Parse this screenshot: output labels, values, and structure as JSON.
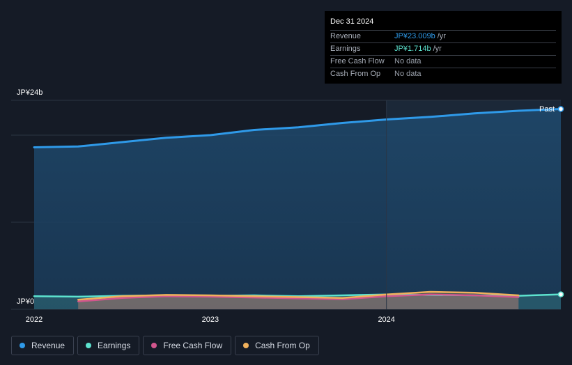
{
  "tooltip": {
    "date": "Dec 31 2024",
    "rows": [
      {
        "label": "Revenue",
        "value": "JP¥23.009b",
        "unit": "/yr",
        "color": "#2f9ae9"
      },
      {
        "label": "Earnings",
        "value": "JP¥1.714b",
        "unit": "/yr",
        "color": "#5de3cf"
      },
      {
        "label": "Free Cash Flow",
        "value": "No data",
        "unit": "",
        "color": "#7d838d"
      },
      {
        "label": "Cash From Op",
        "value": "No data",
        "unit": "",
        "color": "#7d838d"
      }
    ]
  },
  "past_label": "Past",
  "legend": [
    {
      "label": "Revenue",
      "color": "#2f9ae9"
    },
    {
      "label": "Earnings",
      "color": "#5de3cf"
    },
    {
      "label": "Free Cash Flow",
      "color": "#d2568d"
    },
    {
      "label": "Cash From Op",
      "color": "#f0b15c"
    }
  ],
  "chart_data": {
    "type": "line",
    "ylabel_top": "JP¥24b",
    "ylabel_bottom": "JP¥0",
    "ylim": [
      0,
      24
    ],
    "xlim": [
      2022.0,
      2024.99
    ],
    "x_ticks": [
      "2022",
      "2023",
      "2024"
    ],
    "x_tick_values": [
      2022,
      2023,
      2024
    ],
    "units": "JP¥ billions",
    "series": [
      {
        "name": "Revenue",
        "color": "#2f9ae9",
        "x": [
          2022.0,
          2022.25,
          2022.5,
          2022.75,
          2023.0,
          2023.25,
          2023.5,
          2023.75,
          2024.0,
          2024.25,
          2024.5,
          2024.75,
          2024.99
        ],
        "y": [
          18.6,
          18.7,
          19.2,
          19.7,
          20.0,
          20.6,
          20.9,
          21.4,
          21.8,
          22.1,
          22.5,
          22.8,
          23.0
        ]
      },
      {
        "name": "Earnings",
        "color": "#5de3cf",
        "x": [
          2022.0,
          2022.25,
          2022.5,
          2022.75,
          2023.0,
          2023.25,
          2023.5,
          2023.75,
          2024.0,
          2024.25,
          2024.5,
          2024.75,
          2024.99
        ],
        "y": [
          1.5,
          1.45,
          1.55,
          1.6,
          1.55,
          1.6,
          1.5,
          1.6,
          1.7,
          1.65,
          1.6,
          1.55,
          1.71
        ]
      },
      {
        "name": "Free Cash Flow",
        "color": "#d2568d",
        "x": [
          2022.25,
          2022.5,
          2022.75,
          2023.0,
          2023.25,
          2023.5,
          2023.75,
          2024.0,
          2024.25,
          2024.5,
          2024.75
        ],
        "y": [
          0.9,
          1.3,
          1.5,
          1.45,
          1.35,
          1.25,
          1.15,
          1.5,
          1.7,
          1.6,
          1.4
        ]
      },
      {
        "name": "Cash From Op",
        "color": "#f0b15c",
        "x": [
          2022.25,
          2022.5,
          2022.75,
          2023.0,
          2023.25,
          2023.5,
          2023.75,
          2024.0,
          2024.25,
          2024.5,
          2024.75
        ],
        "y": [
          1.1,
          1.5,
          1.65,
          1.6,
          1.5,
          1.4,
          1.3,
          1.7,
          2.0,
          1.9,
          1.6
        ]
      }
    ]
  }
}
